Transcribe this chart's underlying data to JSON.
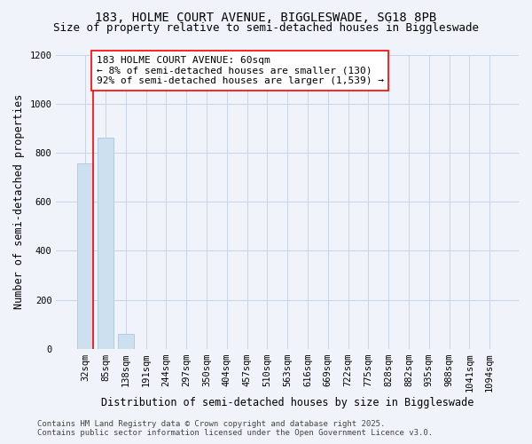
{
  "title_line1": "183, HOLME COURT AVENUE, BIGGLESWADE, SG18 8PB",
  "title_line2": "Size of property relative to semi-detached houses in Biggleswade",
  "xlabel": "Distribution of semi-detached houses by size in Biggleswade",
  "ylabel": "Number of semi-detached properties",
  "bar_labels": [
    "32sqm",
    "85sqm",
    "138sqm",
    "191sqm",
    "244sqm",
    "297sqm",
    "350sqm",
    "404sqm",
    "457sqm",
    "510sqm",
    "563sqm",
    "616sqm",
    "669sqm",
    "722sqm",
    "775sqm",
    "828sqm",
    "882sqm",
    "935sqm",
    "988sqm",
    "1041sqm",
    "1094sqm"
  ],
  "bar_values": [
    755,
    860,
    60,
    0,
    0,
    0,
    0,
    0,
    0,
    0,
    0,
    0,
    0,
    0,
    0,
    0,
    0,
    0,
    0,
    0,
    0
  ],
  "bar_color": "#cce0f0",
  "bar_edge_color": "#aac8e0",
  "red_line_x": 0.4,
  "annotation_text": "183 HOLME COURT AVENUE: 60sqm\n← 8% of semi-detached houses are smaller (130)\n92% of semi-detached houses are larger (1,539) →",
  "ylim": [
    0,
    1200
  ],
  "yticks": [
    0,
    200,
    400,
    600,
    800,
    1000,
    1200
  ],
  "background_color": "#f0f4fa",
  "grid_color": "#c8d4e8",
  "footer_text": "Contains HM Land Registry data © Crown copyright and database right 2025.\nContains public sector information licensed under the Open Government Licence v3.0.",
  "title_fontsize": 10,
  "subtitle_fontsize": 9,
  "axis_label_fontsize": 8.5,
  "tick_fontsize": 7.5,
  "annotation_fontsize": 8,
  "footer_fontsize": 6.5
}
